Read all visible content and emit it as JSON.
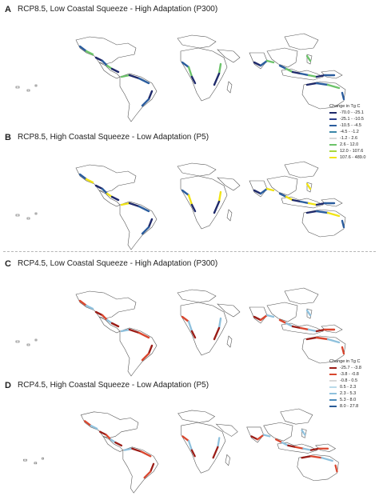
{
  "panels": [
    {
      "letter": "A",
      "title": "RCP8.5, Low Coastal Squeeze - High Adaptation (P300)"
    },
    {
      "letter": "B",
      "title": "RCP8.5, High Coastal Squeeze - Low Adaptation (P5)"
    },
    {
      "letter": "C",
      "title": "RCP4.5, Low Coastal Squeeze - High Adaptation (P300)"
    },
    {
      "letter": "D",
      "title": "RCP4.5, High Coastal Squeeze - Low Adaptation (P5)"
    }
  ],
  "legend_rcp85": {
    "title": "Change in Tg C",
    "items": [
      {
        "label": "-70.0 - -25.1",
        "color": "#1f2a6b"
      },
      {
        "label": "-25.1 - -10.5",
        "color": "#2c3f8c"
      },
      {
        "label": "-10.5 - -4.5",
        "color": "#2b5d9e"
      },
      {
        "label": "-4.5 - -1.2",
        "color": "#3a87a8"
      },
      {
        "label": "-1.2 - 2.6",
        "color": "#d9d9d9"
      },
      {
        "label": "2.6 - 12.0",
        "color": "#6cc36a"
      },
      {
        "label": "12.0 - 107.6",
        "color": "#a8d83e"
      },
      {
        "label": "107.6 - 489.0",
        "color": "#f1e416"
      }
    ]
  },
  "legend_rcp45": {
    "title": "Change in Tg C",
    "items": [
      {
        "label": "-25.7 - -3.8",
        "color": "#9b1d17"
      },
      {
        "label": "-3.8 - -0.8",
        "color": "#d9472f"
      },
      {
        "label": "-0.8 - 0.5",
        "color": "#d9d9d9"
      },
      {
        "label": "0.5 - 2.3",
        "color": "#b9dbea"
      },
      {
        "label": "2.3 - 5.3",
        "color": "#8fc1dd"
      },
      {
        "label": "5.3 - 8.0",
        "color": "#4e8dbd"
      },
      {
        "label": "8.0 - 27.8",
        "color": "#2b5c98"
      }
    ]
  },
  "colors": {
    "land_outline": "#555555",
    "rcp85_dark": "#1f2a6b",
    "rcp85_mid": "#2b5d9e",
    "rcp85_green": "#6cc36a",
    "rcp85_yellow": "#f1e416",
    "rcp45_dark": "#9b1d17",
    "rcp45_mid": "#d9472f",
    "rcp45_light": "#8fc1dd"
  }
}
